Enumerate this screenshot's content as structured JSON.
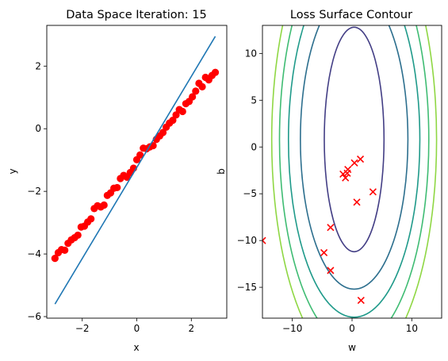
{
  "chart_data": [
    {
      "type": "scatter",
      "title": "Data Space Iteration: 15",
      "xlabel": "x",
      "ylabel": "y",
      "xlim": [
        -3.3,
        3.3
      ],
      "ylim": [
        -6.05,
        3.3
      ],
      "xticks": [
        -2,
        0,
        2
      ],
      "yticks": [
        -6,
        -4,
        -2,
        0,
        2
      ],
      "grid": false,
      "colors": {
        "points": "#ff0000",
        "line": "#1f77b4"
      },
      "series": [
        {
          "kind": "points",
          "x": [
            -3.0,
            -2.88,
            -2.76,
            -2.64,
            -2.52,
            -2.4,
            -2.28,
            -2.16,
            -2.04,
            -1.92,
            -1.8,
            -1.68,
            -1.56,
            -1.44,
            -1.32,
            -1.2,
            -1.08,
            -0.96,
            -0.84,
            -0.72,
            -0.6,
            -0.48,
            -0.36,
            -0.24,
            -0.12,
            0.0,
            0.12,
            0.24,
            0.36,
            0.48,
            0.6,
            0.72,
            0.84,
            0.96,
            1.08,
            1.2,
            1.32,
            1.44,
            1.56,
            1.68,
            1.8,
            1.92,
            2.04,
            2.16,
            2.28,
            2.4,
            2.52,
            2.64,
            2.76,
            2.88
          ],
          "y": [
            -4.14,
            -3.96,
            -3.86,
            -3.88,
            -3.66,
            -3.55,
            -3.48,
            -3.4,
            -3.14,
            -3.11,
            -2.98,
            -2.88,
            -2.55,
            -2.46,
            -2.5,
            -2.44,
            -2.13,
            -2.05,
            -1.9,
            -1.88,
            -1.59,
            -1.49,
            -1.55,
            -1.4,
            -1.26,
            -0.99,
            -0.84,
            -0.62,
            -0.64,
            -0.58,
            -0.54,
            -0.34,
            -0.23,
            -0.12,
            0.05,
            0.18,
            0.27,
            0.44,
            0.61,
            0.55,
            0.8,
            0.87,
            1.02,
            1.2,
            1.45,
            1.34,
            1.64,
            1.56,
            1.7,
            1.8
          ]
        },
        {
          "kind": "line",
          "x": [
            -3.0,
            2.88
          ],
          "y": [
            -5.6,
            2.95
          ]
        }
      ]
    },
    {
      "type": "contour",
      "title": "Loss Surface Contour",
      "xlabel": "w",
      "ylabel": "b",
      "xlim": [
        -15,
        15
      ],
      "ylim": [
        -18.3,
        13
      ],
      "xticks": [
        -10,
        0,
        10
      ],
      "yticks": [
        -15,
        -10,
        -5,
        0,
        5,
        10
      ],
      "grid": false,
      "contour_center": [
        0.35,
        0.8
      ],
      "contour_ring_half_widths_w": [
        5.0,
        9.0,
        11.0,
        12.5,
        13.8
      ],
      "contour_ring_half_heights_b": [
        12.0,
        16.0,
        19.0,
        22.0,
        24.5
      ],
      "contour_colors": [
        "#433e85",
        "#2d6f8e",
        "#1f9a8a",
        "#3fbc73",
        "#8fd744"
      ],
      "marker_color": "#ff0000",
      "iterations": {
        "w": [
          -15.0,
          -4.7,
          -3.6,
          -3.6,
          3.5,
          0.8,
          -0.8,
          -1.5,
          -0.7,
          0.4,
          1.4,
          -1.1,
          1.5
        ],
        "b": [
          -10.0,
          -11.3,
          -8.6,
          -13.2,
          -4.8,
          -5.9,
          -2.8,
          -2.9,
          -2.4,
          -1.7,
          -1.3,
          -3.3,
          -16.4
        ]
      }
    }
  ]
}
